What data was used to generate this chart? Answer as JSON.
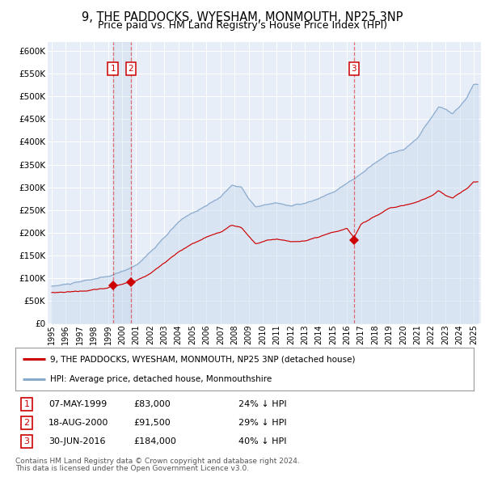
{
  "title": "9, THE PADDOCKS, WYESHAM, MONMOUTH, NP25 3NP",
  "subtitle": "Price paid vs. HM Land Registry's House Price Index (HPI)",
  "title_fontsize": 10.5,
  "subtitle_fontsize": 9,
  "bg_color": "#ffffff",
  "plot_bg_color": "#e8eef8",
  "grid_color": "#ffffff",
  "red_line_color": "#cc0000",
  "blue_line_color": "#88aacc",
  "blue_fill_color": "#c8d8ee",
  "sales": [
    {
      "label": "1",
      "date_num": 1999.35,
      "price": 83000,
      "hpi_pct": "24% ↓ HPI",
      "date_str": "07-MAY-1999"
    },
    {
      "label": "2",
      "date_num": 2000.63,
      "price": 91500,
      "hpi_pct": "29% ↓ HPI",
      "date_str": "18-AUG-2000"
    },
    {
      "label": "3",
      "date_num": 2016.49,
      "price": 184000,
      "hpi_pct": "40% ↓ HPI",
      "date_str": "30-JUN-2016"
    }
  ],
  "legend_entries": [
    {
      "color": "#cc0000",
      "label": "9, THE PADDOCKS, WYESHAM, MONMOUTH, NP25 3NP (detached house)"
    },
    {
      "color": "#88aacc",
      "label": "HPI: Average price, detached house, Monmouthshire"
    }
  ],
  "footer_lines": [
    "Contains HM Land Registry data © Crown copyright and database right 2024.",
    "This data is licensed under the Open Government Licence v3.0."
  ],
  "ylim": [
    0,
    620000
  ],
  "yticks": [
    0,
    50000,
    100000,
    150000,
    200000,
    250000,
    300000,
    350000,
    400000,
    450000,
    500000,
    550000,
    600000
  ],
  "xlim_start": 1994.7,
  "xlim_end": 2025.5
}
